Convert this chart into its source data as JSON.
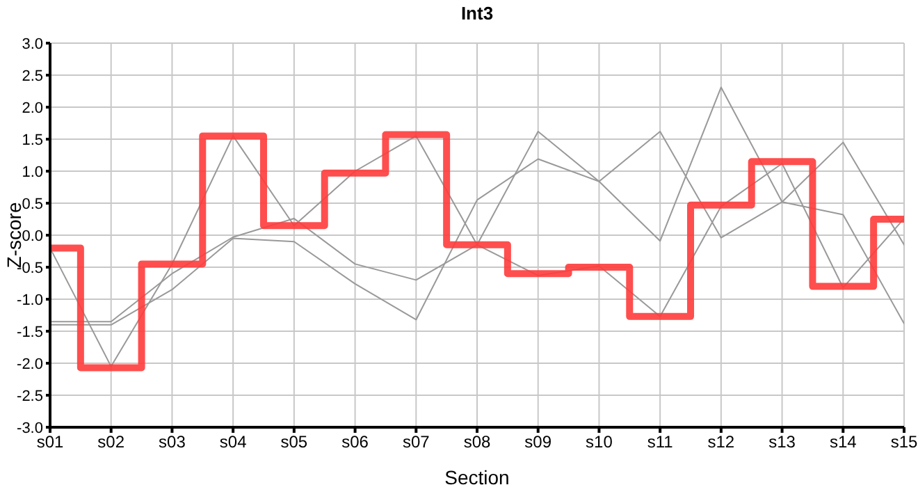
{
  "chart_data": {
    "type": "line",
    "title": "Int3",
    "xlabel": "Section",
    "ylabel": "Z-score",
    "categories": [
      "s01",
      "s02",
      "s03",
      "s04",
      "s05",
      "s06",
      "s07",
      "s08",
      "s09",
      "s10",
      "s11",
      "s12",
      "s13",
      "s14",
      "s15"
    ],
    "series": [
      {
        "color": "#999999",
        "values": [
          -0.2,
          -2.05,
          -0.45,
          1.55,
          0.15,
          1.0,
          1.55,
          -0.15,
          -0.63,
          -0.48,
          -1.27,
          0.45,
          1.12,
          -0.82,
          0.26
        ]
      },
      {
        "color": "#999999",
        "values": [
          -1.35,
          -1.35,
          -0.6,
          -0.03,
          0.26,
          -0.45,
          -0.7,
          -0.15,
          1.62,
          0.84,
          -0.09,
          2.31,
          0.52,
          0.32,
          -1.38
        ]
      },
      {
        "color": "#999999",
        "values": [
          -1.4,
          -1.4,
          -0.85,
          -0.05,
          -0.1,
          -0.76,
          -1.32,
          0.55,
          1.19,
          0.84,
          1.62,
          -0.04,
          0.52,
          1.45,
          -0.15
        ]
      },
      {
        "type": "step",
        "color": "#ff3b3b",
        "values": [
          -0.2,
          -2.07,
          -0.45,
          1.55,
          0.15,
          0.97,
          1.57,
          -0.15,
          -0.6,
          -0.5,
          -1.27,
          0.47,
          1.15,
          -0.8,
          0.25
        ]
      }
    ],
    "ylim": [
      -3,
      3
    ],
    "yticks": [
      {
        "value": -3,
        "label": "-3.0"
      },
      {
        "value": -2.5,
        "label": "-2.5"
      },
      {
        "value": -2,
        "label": "-2.0"
      },
      {
        "value": -1.5,
        "label": "-1.5"
      },
      {
        "value": -1,
        "label": "-1.0"
      },
      {
        "value": -0.5,
        "label": "-0.5"
      },
      {
        "value": 0,
        "label": "0.0"
      },
      {
        "value": 0.5,
        "label": "0.5"
      },
      {
        "value": 1,
        "label": "1.0"
      },
      {
        "value": 1.5,
        "label": "1.5"
      },
      {
        "value": 2,
        "label": "2.0"
      },
      {
        "value": 2.5,
        "label": "2.5"
      },
      {
        "value": 3,
        "label": "3.0"
      }
    ],
    "grid": true,
    "legend": false,
    "marker": "none"
  }
}
